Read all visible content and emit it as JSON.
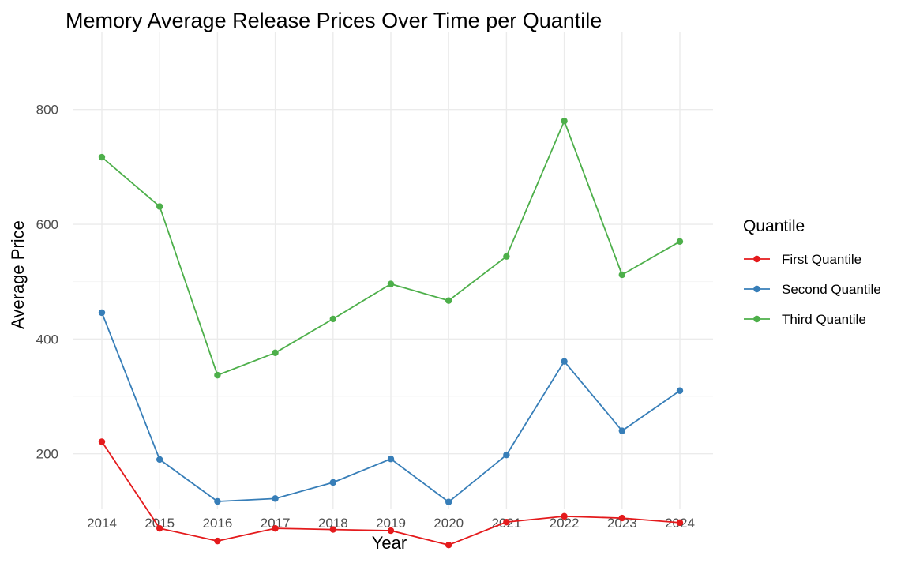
{
  "chart_data": {
    "type": "line",
    "title": "Memory Average Release Prices Over Time per Quantile",
    "xlabel": "Year",
    "ylabel": "Average Price",
    "x": [
      "2014",
      "2015",
      "2016",
      "2017",
      "2018",
      "2019",
      "2020",
      "2021",
      "2022",
      "2023",
      "2024"
    ],
    "xlim": [
      2014,
      2024
    ],
    "ylim": [
      0,
      800
    ],
    "yticks": [
      200,
      400,
      600,
      800
    ],
    "grid": true,
    "legend": {
      "title": "Quantile",
      "placement": "right"
    },
    "series": [
      {
        "name": "First Quantile",
        "color": "#E41A1C",
        "values": [
          221,
          70,
          48,
          70,
          68,
          66,
          41,
          81,
          91,
          88,
          80
        ]
      },
      {
        "name": "Second Quantile",
        "color": "#377EB8",
        "values": [
          446,
          190,
          117,
          122,
          150,
          191,
          116,
          198,
          361,
          240,
          310
        ]
      },
      {
        "name": "Third Quantile",
        "color": "#4DAF4A",
        "values": [
          717,
          631,
          337,
          376,
          435,
          496,
          467,
          544,
          780,
          512,
          570
        ]
      }
    ]
  }
}
